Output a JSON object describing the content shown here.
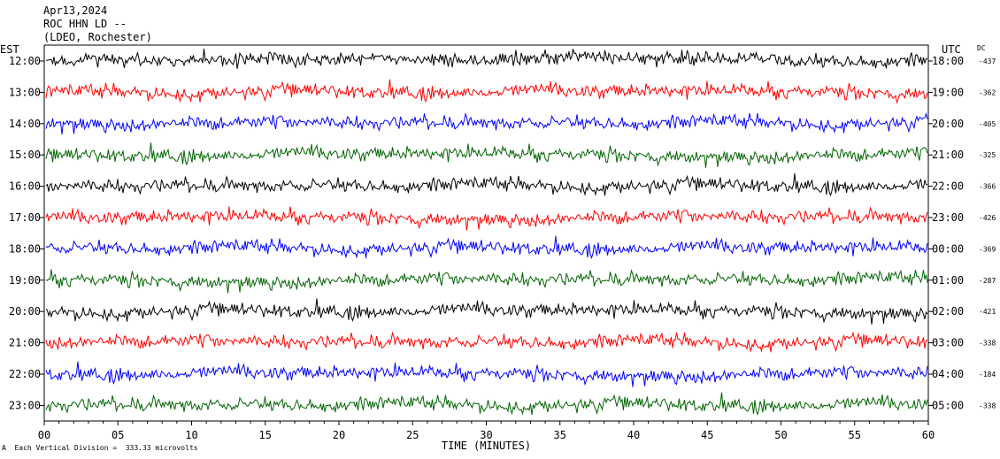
{
  "header": {
    "date": "Apr13,2024",
    "station": "ROC HHN LD --",
    "network": "(LDEO, Rochester)"
  },
  "footer": {
    "marker": "A",
    "vertical_division": "Each Vertical Division =  333.33 microvolts"
  },
  "chart_data": {
    "type": "line",
    "title": "",
    "xlabel": "TIME (MINUTES)",
    "ylabel_left": "EST",
    "ylabel_right": "UTC",
    "dc_label": "DC",
    "xlim": [
      0,
      60
    ],
    "x_ticks": [
      "00",
      "05",
      "10",
      "15",
      "20",
      "25",
      "30",
      "35",
      "40",
      "45",
      "50",
      "55",
      "60"
    ],
    "colors": [
      "#000000",
      "#ff0000",
      "#0000ff",
      "#006400"
    ],
    "series": [
      {
        "est": "12:00",
        "utc": "18:00",
        "dc": "-437"
      },
      {
        "est": "13:00",
        "utc": "19:00",
        "dc": "-362"
      },
      {
        "est": "14:00",
        "utc": "20:00",
        "dc": "-405"
      },
      {
        "est": "15:00",
        "utc": "21:00",
        "dc": "-325"
      },
      {
        "est": "16:00",
        "utc": "22:00",
        "dc": "-366"
      },
      {
        "est": "17:00",
        "utc": "23:00",
        "dc": "-426"
      },
      {
        "est": "18:00",
        "utc": "00:00",
        "dc": "-369"
      },
      {
        "est": "19:00",
        "utc": "01:00",
        "dc": "-287"
      },
      {
        "est": "20:00",
        "utc": "02:00",
        "dc": "-421"
      },
      {
        "est": "21:00",
        "utc": "03:00",
        "dc": "-338"
      },
      {
        "est": "22:00",
        "utc": "04:00",
        "dc": "-184"
      },
      {
        "est": "23:00",
        "utc": "05:00",
        "dc": "-338"
      }
    ]
  }
}
